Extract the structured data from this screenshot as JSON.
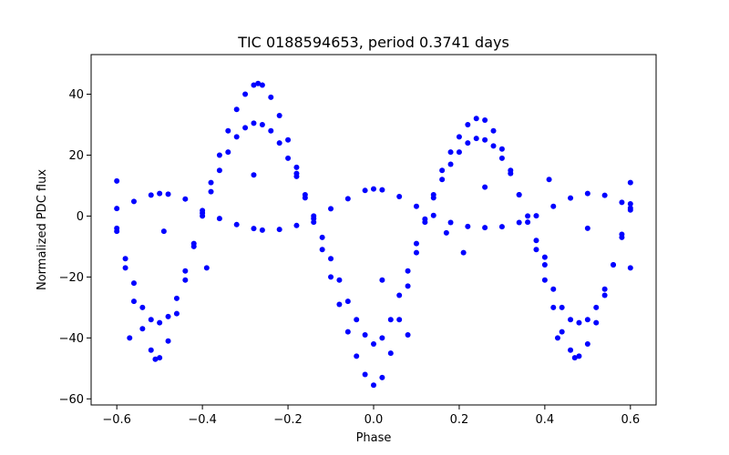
{
  "chart_data": {
    "type": "scatter",
    "title": "TIC 0188594653, period 0.3741 days",
    "xlabel": "Phase",
    "ylabel": "Normalized PDC flux",
    "xlim": [
      -0.66,
      0.66
    ],
    "ylim": [
      -62,
      53
    ],
    "xticks": [
      -0.6,
      -0.4,
      -0.2,
      0.0,
      0.2,
      0.4,
      0.6
    ],
    "xtick_labels": [
      "−0.6",
      "−0.4",
      "−0.2",
      "0.0",
      "0.2",
      "0.4",
      "0.6"
    ],
    "yticks": [
      -60,
      -40,
      -20,
      0,
      20,
      40
    ],
    "ytick_labels": [
      "−60",
      "−40",
      "−20",
      "0",
      "20",
      "40"
    ],
    "grid": false,
    "marker_color": "#0000ff",
    "series": [
      {
        "points": [
          [
            -0.6,
            2.5
          ],
          [
            -0.56,
            4.8
          ],
          [
            -0.52,
            6.9
          ],
          [
            -0.5,
            7.4
          ],
          [
            -0.48,
            7.2
          ],
          [
            -0.44,
            5.6
          ],
          [
            -0.4,
            1.8
          ],
          [
            -0.36,
            -0.8
          ],
          [
            -0.32,
            -2.8
          ],
          [
            -0.28,
            -4.1
          ],
          [
            -0.26,
            -4.6
          ],
          [
            -0.22,
            -4.4
          ],
          [
            -0.18,
            -3.1
          ],
          [
            -0.14,
            -0.8
          ],
          [
            -0.1,
            2.4
          ],
          [
            -0.06,
            5.7
          ],
          [
            -0.02,
            8.4
          ],
          [
            0.0,
            8.9
          ],
          [
            0.02,
            8.6
          ],
          [
            0.06,
            6.4
          ],
          [
            0.1,
            3.2
          ],
          [
            0.14,
            0.2
          ],
          [
            0.18,
            -2.1
          ],
          [
            0.22,
            -3.4
          ],
          [
            0.26,
            -3.8
          ],
          [
            0.3,
            -3.5
          ],
          [
            0.34,
            -2.1
          ],
          [
            0.38,
            0.1
          ],
          [
            0.42,
            3.2
          ],
          [
            0.46,
            5.9
          ],
          [
            0.5,
            7.4
          ],
          [
            0.54,
            6.8
          ],
          [
            0.58,
            4.5
          ],
          [
            0.6,
            2.6
          ]
        ]
      },
      {
        "points": [
          [
            -0.6,
            -4.0
          ],
          [
            -0.58,
            -14.0
          ],
          [
            -0.56,
            -22.0
          ],
          [
            -0.54,
            -30.0
          ],
          [
            -0.52,
            -34.0
          ],
          [
            -0.5,
            -35.0
          ],
          [
            -0.48,
            -33.0
          ],
          [
            -0.46,
            -27.0
          ],
          [
            -0.44,
            -18.0
          ],
          [
            -0.42,
            -9.0
          ],
          [
            -0.4,
            0.0
          ],
          [
            -0.38,
            8.0
          ],
          [
            -0.36,
            15.0
          ],
          [
            -0.34,
            21.0
          ],
          [
            -0.32,
            26.0
          ],
          [
            -0.3,
            29.0
          ],
          [
            -0.28,
            30.5
          ],
          [
            -0.26,
            30.0
          ],
          [
            -0.24,
            28.0
          ],
          [
            -0.22,
            24.0
          ],
          [
            -0.2,
            19.0
          ],
          [
            -0.18,
            13.0
          ],
          [
            -0.16,
            6.0
          ],
          [
            -0.14,
            0.0
          ],
          [
            -0.12,
            -7.0
          ],
          [
            -0.1,
            -14.0
          ],
          [
            -0.08,
            -21.0
          ],
          [
            -0.06,
            -28.0
          ],
          [
            -0.04,
            -34.0
          ],
          [
            -0.02,
            -39.0
          ],
          [
            0.0,
            -42.0
          ],
          [
            0.02,
            -40.0
          ],
          [
            0.04,
            -34.0
          ],
          [
            0.06,
            -26.0
          ],
          [
            0.08,
            -18.0
          ],
          [
            0.1,
            -9.0
          ],
          [
            0.12,
            -1.0
          ],
          [
            0.14,
            6.0
          ],
          [
            0.16,
            12.0
          ],
          [
            0.18,
            17.0
          ],
          [
            0.2,
            21.0
          ],
          [
            0.22,
            24.0
          ],
          [
            0.24,
            25.5
          ],
          [
            0.26,
            25.0
          ],
          [
            0.28,
            23.0
          ],
          [
            0.3,
            19.0
          ],
          [
            0.32,
            14.0
          ],
          [
            0.34,
            7.0
          ],
          [
            0.36,
            0.0
          ],
          [
            0.38,
            -8.0
          ],
          [
            0.4,
            -16.0
          ],
          [
            0.42,
            -24.0
          ],
          [
            0.44,
            -30.0
          ],
          [
            0.46,
            -34.0
          ],
          [
            0.48,
            -35.0
          ],
          [
            0.5,
            -34.0
          ],
          [
            0.52,
            -30.0
          ],
          [
            0.54,
            -24.0
          ],
          [
            0.56,
            -16.0
          ],
          [
            0.58,
            -7.0
          ],
          [
            0.6,
            2.0
          ]
        ]
      },
      {
        "points": [
          [
            -0.6,
            -5.0
          ],
          [
            -0.58,
            -17.0
          ],
          [
            -0.56,
            -28.0
          ],
          [
            -0.54,
            -37.0
          ],
          [
            -0.52,
            -44.0
          ],
          [
            -0.51,
            -47.0
          ],
          [
            -0.5,
            -46.5
          ],
          [
            -0.48,
            -41.0
          ],
          [
            -0.46,
            -32.0
          ],
          [
            -0.44,
            -21.0
          ],
          [
            -0.42,
            -10.0
          ],
          [
            -0.4,
            1.0
          ],
          [
            -0.38,
            11.0
          ],
          [
            -0.36,
            20.0
          ],
          [
            -0.34,
            28.0
          ],
          [
            -0.32,
            35.0
          ],
          [
            -0.3,
            40.0
          ],
          [
            -0.28,
            43.0
          ],
          [
            -0.27,
            43.5
          ],
          [
            -0.26,
            43.0
          ],
          [
            -0.24,
            39.0
          ],
          [
            -0.22,
            33.0
          ],
          [
            -0.2,
            25.0
          ],
          [
            -0.18,
            16.0
          ],
          [
            -0.16,
            7.0
          ],
          [
            -0.14,
            -2.0
          ],
          [
            -0.12,
            -11.0
          ],
          [
            -0.1,
            -20.0
          ],
          [
            -0.08,
            -29.0
          ],
          [
            -0.06,
            -38.0
          ],
          [
            -0.04,
            -46.0
          ],
          [
            -0.02,
            -52.0
          ],
          [
            0.0,
            -55.5
          ],
          [
            0.02,
            -53.0
          ],
          [
            0.04,
            -45.0
          ],
          [
            0.06,
            -34.0
          ],
          [
            0.08,
            -23.0
          ],
          [
            0.1,
            -12.0
          ],
          [
            0.12,
            -2.0
          ],
          [
            0.14,
            7.0
          ],
          [
            0.16,
            15.0
          ],
          [
            0.18,
            21.0
          ],
          [
            0.2,
            26.0
          ],
          [
            0.22,
            30.0
          ],
          [
            0.24,
            32.0
          ],
          [
            0.26,
            31.5
          ],
          [
            0.28,
            28.0
          ],
          [
            0.3,
            22.0
          ],
          [
            0.32,
            15.0
          ],
          [
            0.34,
            7.0
          ],
          [
            0.36,
            -2.0
          ],
          [
            0.38,
            -11.0
          ],
          [
            0.4,
            -21.0
          ],
          [
            0.42,
            -30.0
          ],
          [
            0.44,
            -38.0
          ],
          [
            0.46,
            -44.0
          ],
          [
            0.47,
            -46.5
          ],
          [
            0.48,
            -46.0
          ],
          [
            0.5,
            -42.0
          ],
          [
            0.52,
            -35.0
          ],
          [
            0.54,
            -26.0
          ],
          [
            0.56,
            -16.0
          ],
          [
            0.58,
            -6.0
          ],
          [
            0.6,
            4.0
          ]
        ]
      },
      {
        "points": [
          [
            -0.6,
            11.5
          ],
          [
            -0.57,
            -40.0
          ],
          [
            -0.49,
            -5.0
          ],
          [
            -0.39,
            -17.0
          ],
          [
            -0.28,
            13.5
          ],
          [
            -0.18,
            14.0
          ],
          [
            0.02,
            -21.0
          ],
          [
            0.08,
            -39.0
          ],
          [
            0.17,
            -5.5
          ],
          [
            0.21,
            -12.0
          ],
          [
            0.26,
            9.5
          ],
          [
            0.4,
            -13.5
          ],
          [
            0.41,
            12.0
          ],
          [
            0.43,
            -40.0
          ],
          [
            0.5,
            -4.0
          ],
          [
            0.6,
            -17.0
          ],
          [
            0.6,
            11.0
          ]
        ]
      }
    ]
  }
}
